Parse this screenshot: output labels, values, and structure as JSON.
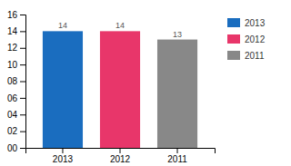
{
  "chart_data": {
    "type": "bar",
    "categories": [
      "2013",
      "2012",
      "2011"
    ],
    "values": [
      14,
      14,
      13
    ],
    "colors": [
      "#1a6dbf",
      "#e8366a",
      "#888888"
    ],
    "ylim": [
      0,
      16
    ],
    "yticks": [
      {
        "value": 0,
        "label": "00"
      },
      {
        "value": 2,
        "label": "02"
      },
      {
        "value": 4,
        "label": "04"
      },
      {
        "value": 6,
        "label": "06"
      },
      {
        "value": 8,
        "label": "08"
      },
      10,
      12,
      14,
      16
    ],
    "data_labels": true,
    "legend": "right",
    "grid": false
  }
}
